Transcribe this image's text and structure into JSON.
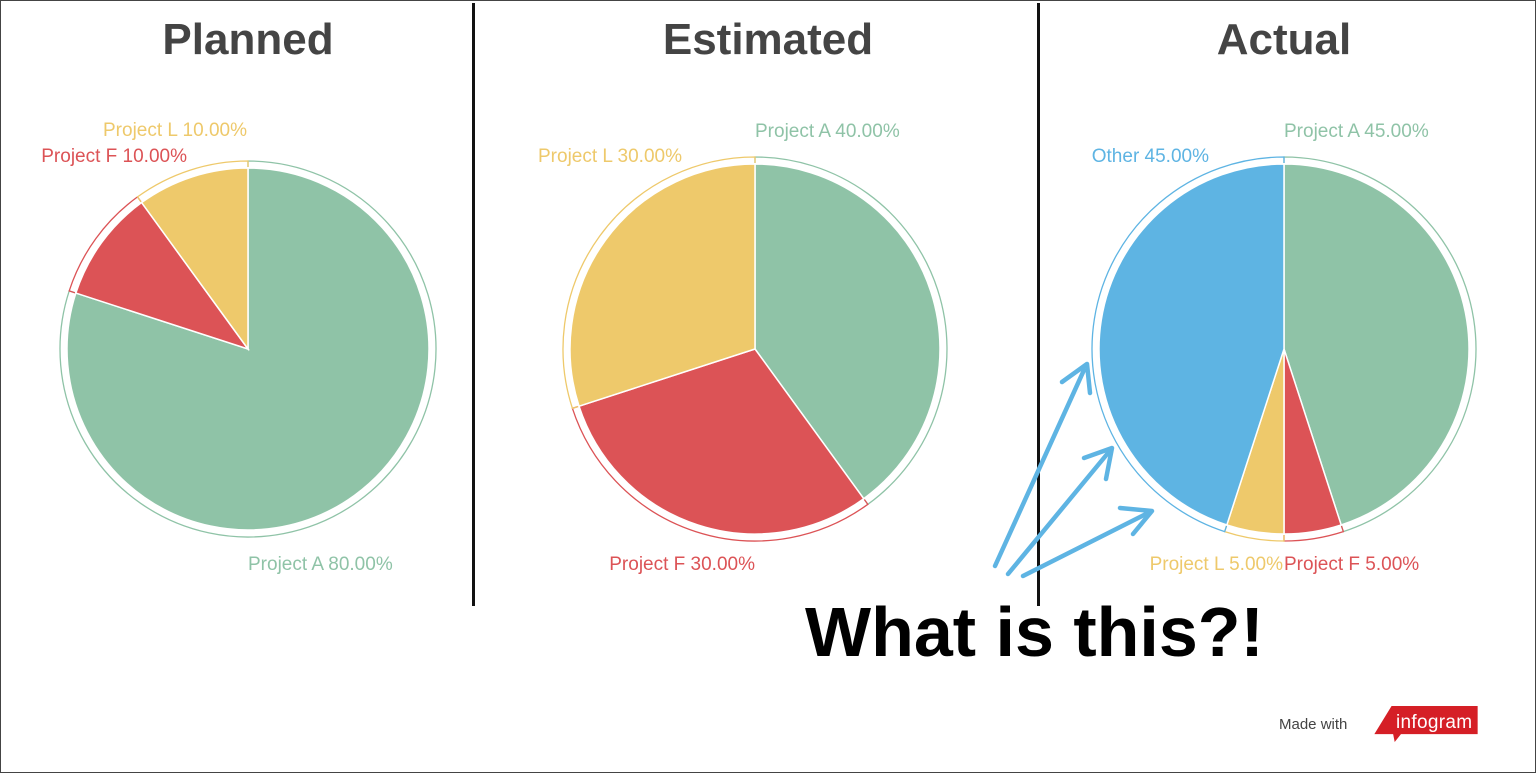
{
  "colors": {
    "project_a": "#8fc3a7",
    "project_f": "#dc5356",
    "project_l": "#eec96b",
    "other": "#5eb4e3",
    "annotation_arrow": "#5eb4e3",
    "brand": "#d51f26"
  },
  "chart_data": [
    {
      "type": "pie",
      "title": "Planned",
      "slices": [
        {
          "label": "Project A",
          "value": 80.0,
          "display": "Project A 80.00%",
          "color": "#8fc3a7"
        },
        {
          "label": "Project F",
          "value": 10.0,
          "display": "Project F 10.00%",
          "color": "#dc5356"
        },
        {
          "label": "Project L",
          "value": 10.0,
          "display": "Project L 10.00%",
          "color": "#eec96b"
        }
      ]
    },
    {
      "type": "pie",
      "title": "Estimated",
      "slices": [
        {
          "label": "Project A",
          "value": 40.0,
          "display": "Project A 40.00%",
          "color": "#8fc3a7"
        },
        {
          "label": "Project F",
          "value": 30.0,
          "display": "Project F 30.00%",
          "color": "#dc5356"
        },
        {
          "label": "Project L",
          "value": 30.0,
          "display": "Project L 30.00%",
          "color": "#eec96b"
        }
      ]
    },
    {
      "type": "pie",
      "title": "Actual",
      "slices": [
        {
          "label": "Project A",
          "value": 45.0,
          "display": "Project A 45.00%",
          "color": "#8fc3a7"
        },
        {
          "label": "Project F",
          "value": 5.0,
          "display": "Project F 5.00%",
          "color": "#dc5356"
        },
        {
          "label": "Project L",
          "value": 5.0,
          "display": "Project L 5.00%",
          "color": "#eec96b"
        },
        {
          "label": "Other",
          "value": 45.0,
          "display": "Other 45.00%",
          "color": "#5eb4e3"
        }
      ]
    }
  ],
  "annotation": {
    "text": "What is this?!"
  },
  "footer": {
    "made_with": "Made with",
    "brand": "infogram"
  }
}
